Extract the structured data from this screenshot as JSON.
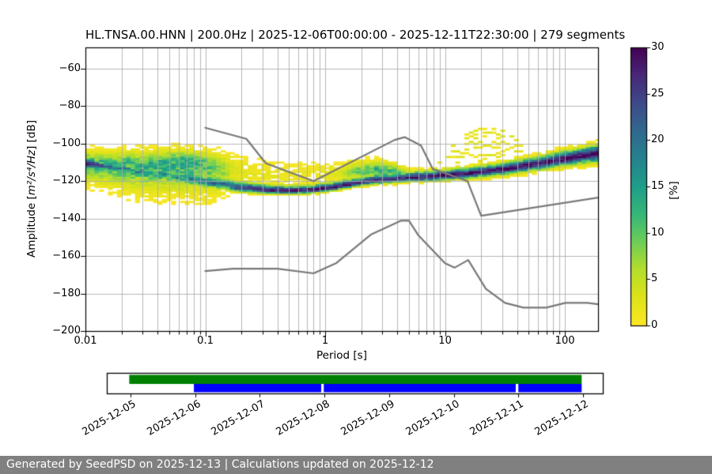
{
  "header": {
    "title": "HL.TNSA.00.HNN | 200.0Hz | 2025-12-06T00:00:00 - 2025-12-11T22:30:00 | 279 segments"
  },
  "footer": {
    "text": "Generated by SeedPSD on 2025-12-13 | Calculations updated on 2025-12-12",
    "bg": "#808080",
    "fg": "#ffffff"
  },
  "chart_data": {
    "type": "heatmap",
    "title": "HL.TNSA.00.HNN | 200.0Hz | 2025-12-06T00:00:00 - 2025-12-11T22:30:00 | 279 segments",
    "n_segments": 279,
    "xlabel": "Period [s]",
    "ylabel_prefix": "Amplitude [",
    "ylabel_math": "m²/s⁴/Hz",
    "ylabel_suffix": "] [dB]",
    "xscale": "log",
    "xlim": [
      0.01,
      189
    ],
    "ylim": [
      -200,
      -48.6
    ],
    "grid": true,
    "xticks": {
      "values": [
        0.01,
        0.1,
        1,
        10,
        100
      ],
      "labels": [
        "0.01",
        "0.1",
        "1",
        "10",
        "100"
      ]
    },
    "yticks": {
      "values": [
        -60,
        -80,
        -100,
        -120,
        -140,
        -160,
        -180,
        -200
      ],
      "labels": [
        "−60",
        "−80",
        "−100",
        "−120",
        "−140",
        "−160",
        "−180",
        "−200"
      ]
    },
    "colorbar": {
      "label": "[%]",
      "vmin": 0,
      "vmax": 30,
      "ticks": [
        0,
        5,
        10,
        15,
        20,
        25,
        30
      ],
      "tick_labels": [
        "0",
        "5",
        "10",
        "15",
        "20",
        "25",
        "30"
      ],
      "colormap": "viridis_r",
      "viridis_stops": [
        "#440154",
        "#482878",
        "#3e4a89",
        "#31688e",
        "#26828e",
        "#1f9e89",
        "#35b779",
        "#6ece58",
        "#b5de2b",
        "#dde318",
        "#fde725"
      ]
    },
    "noise_models": {
      "color": "#787878",
      "high_noise_model": [
        [
          0.1,
          -91.5
        ],
        [
          0.22,
          -97.4
        ],
        [
          0.32,
          -110.5
        ],
        [
          0.8,
          -120.0
        ],
        [
          3.8,
          -98.0
        ],
        [
          4.6,
          -96.5
        ],
        [
          6.3,
          -101.0
        ],
        [
          7.9,
          -113.5
        ],
        [
          15.4,
          -120.0
        ],
        [
          20.0,
          -138.5
        ],
        [
          354.8,
          -126.0
        ]
      ],
      "low_noise_model": [
        [
          0.1,
          -168.0
        ],
        [
          0.17,
          -166.7
        ],
        [
          0.4,
          -166.7
        ],
        [
          0.8,
          -169.2
        ],
        [
          1.24,
          -163.7
        ],
        [
          2.4,
          -148.6
        ],
        [
          4.3,
          -141.1
        ],
        [
          5.0,
          -141.1
        ],
        [
          6.0,
          -149.0
        ],
        [
          10.0,
          -163.8
        ],
        [
          12.0,
          -166.2
        ],
        [
          15.6,
          -162.1
        ],
        [
          21.9,
          -177.5
        ],
        [
          31.6,
          -185.0
        ],
        [
          45.0,
          -187.5
        ],
        [
          70.0,
          -187.5
        ],
        [
          101.0,
          -185.0
        ],
        [
          154.0,
          -185.0
        ],
        [
          328.0,
          -187.5
        ]
      ]
    },
    "psd_distribution": {
      "note": "estimated from pixels: [period_s, mode_dB, sigma_up_dB, sigma_down_dB, peak_percent]",
      "bin_width_octaves": 0.125,
      "db_bin_width": 1,
      "mode_ridge": [
        [
          0.01,
          -110.0,
          1.5,
          1.5,
          30
        ],
        [
          0.016,
          -112.5,
          1.6,
          1.6,
          19
        ],
        [
          0.03,
          -115.0,
          2.0,
          2.0,
          16
        ],
        [
          0.06,
          -117.5,
          2.0,
          2.0,
          16
        ],
        [
          0.1,
          -120.0,
          2.0,
          2.0,
          17
        ],
        [
          0.15,
          -122.0,
          2.0,
          1.5,
          19
        ],
        [
          0.2,
          -123.5,
          2.0,
          1.3,
          24
        ],
        [
          0.3,
          -124.5,
          1.6,
          1.0,
          30
        ],
        [
          0.5,
          -125.0,
          1.5,
          1.0,
          30
        ],
        [
          0.8,
          -124.5,
          1.5,
          1.0,
          30
        ],
        [
          1.2,
          -123.0,
          1.6,
          1.0,
          30
        ],
        [
          1.8,
          -121.0,
          1.8,
          1.0,
          28
        ],
        [
          2.6,
          -119.5,
          1.8,
          1.1,
          27
        ],
        [
          3.5,
          -119.0,
          1.8,
          1.1,
          27
        ],
        [
          5.0,
          -118.0,
          1.8,
          1.2,
          28
        ],
        [
          8.0,
          -117.3,
          1.7,
          1.4,
          30
        ],
        [
          15.0,
          -115.8,
          1.7,
          1.5,
          30
        ],
        [
          30.0,
          -113.5,
          1.9,
          1.7,
          30
        ],
        [
          60.0,
          -110.5,
          2.1,
          1.9,
          30
        ],
        [
          100.0,
          -107.8,
          2.3,
          2.1,
          30
        ],
        [
          189.0,
          -105.0,
          2.6,
          2.6,
          30
        ]
      ],
      "broad_component": [
        [
          0.01,
          -110.0,
          3.5,
          5.5,
          12
        ],
        [
          0.016,
          -110.5,
          3.5,
          6.5,
          12
        ],
        [
          0.03,
          -111.0,
          4.0,
          8.0,
          12
        ],
        [
          0.06,
          -109.5,
          3.6,
          8.5,
          13
        ],
        [
          0.09,
          -110.0,
          3.6,
          9.0,
          12
        ],
        [
          0.13,
          -113.0,
          4.5,
          7.5,
          8
        ],
        [
          0.18,
          -115.0,
          5.0,
          5.0,
          3.2
        ],
        [
          0.25,
          -116.5,
          5.0,
          3.5,
          2.0
        ],
        [
          0.4,
          -116.5,
          4.5,
          4.0,
          1.8
        ],
        [
          0.8,
          -116.0,
          3.5,
          4.0,
          1.6
        ],
        [
          1.3,
          -115.5,
          3.0,
          3.0,
          3.0
        ],
        [
          2.0,
          -114.8,
          3.0,
          2.0,
          10
        ],
        [
          2.8,
          -113.8,
          2.6,
          2.6,
          13
        ],
        [
          3.6,
          -114.5,
          2.4,
          2.0,
          11
        ],
        [
          4.5,
          -115.5,
          2.0,
          1.5,
          7
        ],
        [
          5.5,
          -116.0,
          1.5,
          1.2,
          2.0
        ],
        [
          7.0,
          -116.0,
          1.2,
          1.0,
          0
        ]
      ],
      "eq_arcs": {
        "note": "sparse yellow earthquake arcs above the main band",
        "center_period": 22.4,
        "count": 9,
        "top_db": -91.5,
        "db_spacing": 2.4,
        "curvature": 115,
        "curvature_step": 8,
        "log_range": [
          0.78,
          1.95
        ]
      }
    },
    "timeline": {
      "tick_labels": [
        "2025-12-05",
        "2025-12-06",
        "2025-12-07",
        "2025-12-08",
        "2025-12-09",
        "2025-12-10",
        "2025-12-11",
        "2025-12-12"
      ],
      "green_bar_days": [
        -0.02,
        6.98
      ],
      "blue_segments_days": [
        [
          0.98,
          2.95
        ],
        [
          2.99,
          5.96
        ],
        [
          6.0,
          6.98
        ]
      ],
      "green": "#008000",
      "blue": "#0000ff"
    }
  }
}
